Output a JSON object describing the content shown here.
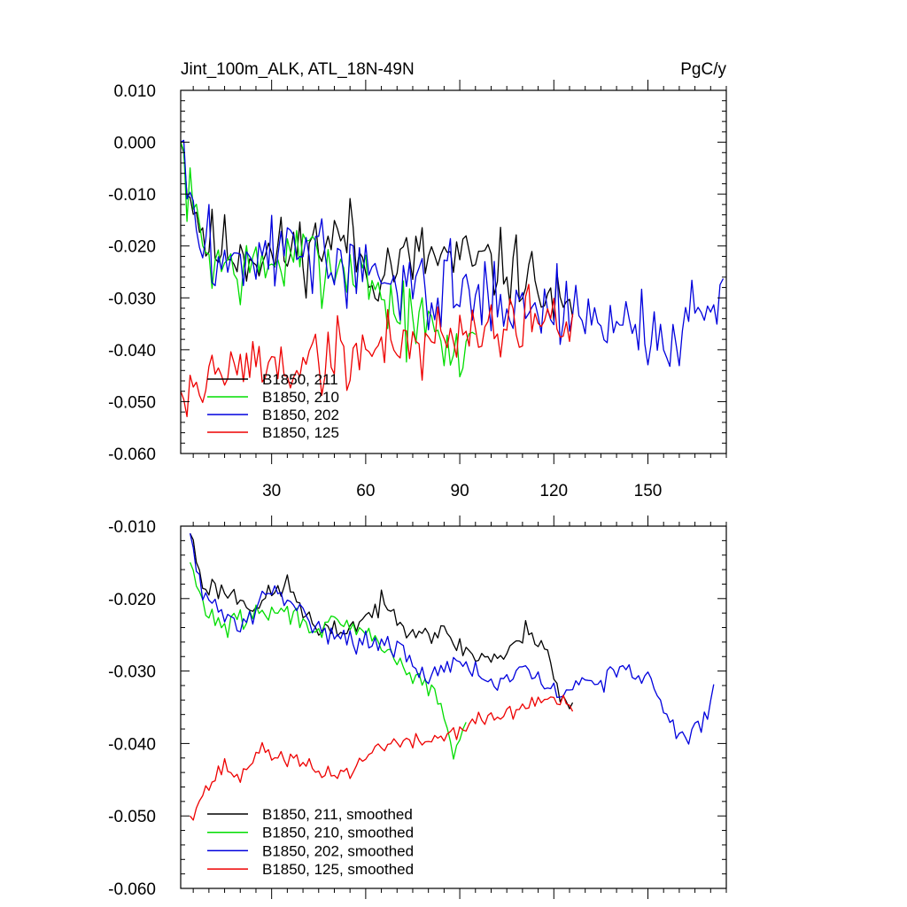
{
  "chart_data": [
    {
      "type": "line",
      "title": "Jint_100m_ALK, ATL_18N-49N",
      "units": "PgC/y",
      "xlim": [
        1,
        175
      ],
      "ylim": [
        -0.06,
        0.01
      ],
      "xticks": [
        30,
        60,
        90,
        120,
        150
      ],
      "xtick_labels": [
        "30",
        "60",
        "90",
        "120",
        "150"
      ],
      "yticks": [
        0.01,
        0.0,
        -0.01,
        -0.02,
        -0.03,
        -0.04,
        -0.05,
        -0.06
      ],
      "ytick_labels": [
        "0.010",
        "0.000",
        "-0.010",
        "-0.020",
        "-0.030",
        "-0.040",
        "-0.050",
        "-0.060"
      ],
      "legend_position": "lower-left",
      "series": [
        {
          "name": "B1850, 211",
          "color": "#000000",
          "start": 1,
          "length": 126,
          "seed": 11,
          "anchors": [
            [
              1,
              0.0
            ],
            [
              5,
              -0.012
            ],
            [
              10,
              -0.02
            ],
            [
              30,
              -0.022
            ],
            [
              55,
              -0.018
            ],
            [
              60,
              -0.025
            ],
            [
              80,
              -0.022
            ],
            [
              110,
              -0.025
            ],
            [
              126,
              -0.035
            ]
          ],
          "noise": 0.0055
        },
        {
          "name": "B1850, 210",
          "color": "#00dd00",
          "start": 1,
          "length": 95,
          "seed": 7,
          "anchors": [
            [
              1,
              0.0
            ],
            [
              4,
              -0.012
            ],
            [
              10,
              -0.022
            ],
            [
              20,
              -0.025
            ],
            [
              40,
              -0.022
            ],
            [
              60,
              -0.025
            ],
            [
              70,
              -0.033
            ],
            [
              80,
              -0.036
            ],
            [
              88,
              -0.042
            ],
            [
              95,
              -0.037
            ]
          ],
          "noise": 0.0055
        },
        {
          "name": "B1850, 202",
          "color": "#0000dd",
          "start": 1,
          "length": 174,
          "seed": 3,
          "anchors": [
            [
              1,
              0.0
            ],
            [
              5,
              -0.015
            ],
            [
              10,
              -0.022
            ],
            [
              25,
              -0.022
            ],
            [
              40,
              -0.02
            ],
            [
              60,
              -0.027
            ],
            [
              80,
              -0.028
            ],
            [
              100,
              -0.03
            ],
            [
              120,
              -0.032
            ],
            [
              140,
              -0.035
            ],
            [
              160,
              -0.038
            ],
            [
              170,
              -0.033
            ],
            [
              174,
              -0.022
            ]
          ],
          "noise": 0.006
        },
        {
          "name": "B1850, 125",
          "color": "#ee0000",
          "start": 1,
          "length": 126,
          "seed": 19,
          "anchors": [
            [
              1,
              -0.048
            ],
            [
              10,
              -0.046
            ],
            [
              20,
              -0.043
            ],
            [
              40,
              -0.043
            ],
            [
              60,
              -0.04
            ],
            [
              80,
              -0.038
            ],
            [
              100,
              -0.035
            ],
            [
              120,
              -0.034
            ],
            [
              126,
              -0.036
            ]
          ],
          "noise": 0.0055
        }
      ]
    },
    {
      "type": "line",
      "xlim": [
        1,
        175
      ],
      "ylim": [
        -0.06,
        -0.01
      ],
      "xticks": [
        30,
        60,
        90,
        120,
        150
      ],
      "yticks": [
        -0.01,
        -0.02,
        -0.03,
        -0.04,
        -0.05,
        -0.06
      ],
      "ytick_labels": [
        "-0.010",
        "-0.020",
        "-0.030",
        "-0.040",
        "-0.050",
        "-0.060"
      ],
      "legend_position": "lower-left",
      "series": [
        {
          "name": "B1850, 211, smoothed",
          "color": "#000000",
          "start": 4,
          "length": 123,
          "seed": 23,
          "anchors": [
            [
              4,
              -0.011
            ],
            [
              8,
              -0.018
            ],
            [
              15,
              -0.019
            ],
            [
              25,
              -0.021
            ],
            [
              35,
              -0.018
            ],
            [
              45,
              -0.025
            ],
            [
              55,
              -0.024
            ],
            [
              65,
              -0.021
            ],
            [
              75,
              -0.024
            ],
            [
              85,
              -0.025
            ],
            [
              95,
              -0.028
            ],
            [
              105,
              -0.028
            ],
            [
              112,
              -0.024
            ],
            [
              118,
              -0.027
            ],
            [
              122,
              -0.034
            ],
            [
              126,
              -0.035
            ]
          ],
          "noise": 0.0012
        },
        {
          "name": "B1850, 210, smoothed",
          "color": "#00dd00",
          "start": 4,
          "length": 89,
          "seed": 29,
          "anchors": [
            [
              4,
              -0.015
            ],
            [
              8,
              -0.021
            ],
            [
              15,
              -0.024
            ],
            [
              25,
              -0.022
            ],
            [
              35,
              -0.022
            ],
            [
              45,
              -0.024
            ],
            [
              55,
              -0.024
            ],
            [
              65,
              -0.026
            ],
            [
              75,
              -0.031
            ],
            [
              80,
              -0.032
            ],
            [
              85,
              -0.036
            ],
            [
              88,
              -0.042
            ],
            [
              92,
              -0.038
            ]
          ],
          "noise": 0.0012
        },
        {
          "name": "B1850, 202, smoothed",
          "color": "#0000dd",
          "start": 4,
          "length": 168,
          "seed": 31,
          "anchors": [
            [
              4,
              -0.011
            ],
            [
              8,
              -0.02
            ],
            [
              15,
              -0.022
            ],
            [
              20,
              -0.024
            ],
            [
              30,
              -0.019
            ],
            [
              40,
              -0.022
            ],
            [
              50,
              -0.025
            ],
            [
              60,
              -0.026
            ],
            [
              70,
              -0.027
            ],
            [
              80,
              -0.031
            ],
            [
              90,
              -0.028
            ],
            [
              100,
              -0.032
            ],
            [
              110,
              -0.03
            ],
            [
              120,
              -0.033
            ],
            [
              130,
              -0.032
            ],
            [
              140,
              -0.03
            ],
            [
              150,
              -0.031
            ],
            [
              160,
              -0.039
            ],
            [
              165,
              -0.038
            ],
            [
              170,
              -0.035
            ],
            [
              171,
              -0.032
            ]
          ],
          "noise": 0.0012
        },
        {
          "name": "B1850, 125, smoothed",
          "color": "#ee0000",
          "start": 4,
          "length": 123,
          "seed": 37,
          "anchors": [
            [
              4,
              -0.05
            ],
            [
              8,
              -0.047
            ],
            [
              15,
              -0.043
            ],
            [
              20,
              -0.045
            ],
            [
              25,
              -0.041
            ],
            [
              35,
              -0.042
            ],
            [
              45,
              -0.044
            ],
            [
              55,
              -0.044
            ],
            [
              65,
              -0.04
            ],
            [
              75,
              -0.04
            ],
            [
              85,
              -0.039
            ],
            [
              95,
              -0.037
            ],
            [
              105,
              -0.036
            ],
            [
              115,
              -0.034
            ],
            [
              120,
              -0.034
            ],
            [
              126,
              -0.035
            ]
          ],
          "noise": 0.0009
        }
      ]
    }
  ]
}
